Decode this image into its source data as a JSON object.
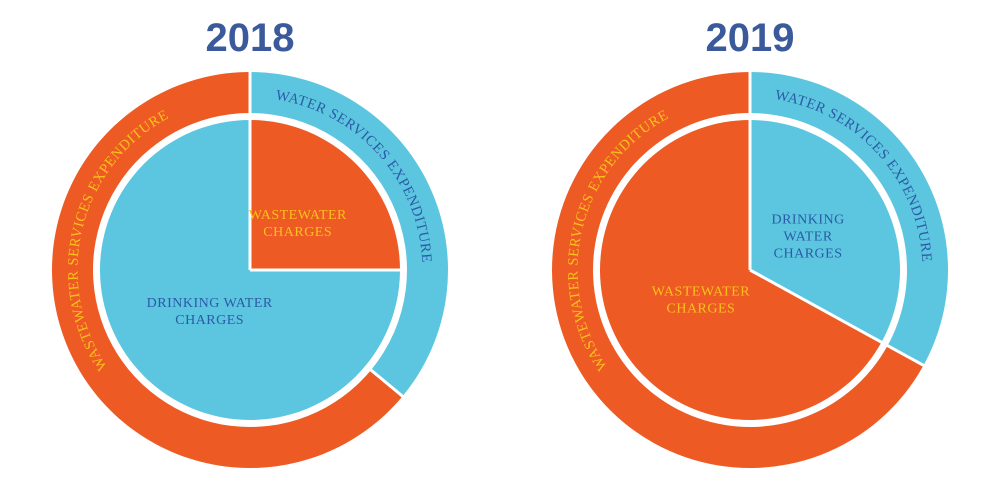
{
  "colors": {
    "water": "#5cc5df",
    "wastewater": "#ee5a24",
    "water_text": "#2a5ca6",
    "wastewater_text": "#f8c11c",
    "title": "#3a5a9c"
  },
  "chart_data": [
    {
      "type": "pie",
      "title": "2018",
      "inner": {
        "slices": [
          {
            "label_lines": [
              "WASTEWATER",
              "CHARGES"
            ],
            "value": 25,
            "group": "wastewater"
          },
          {
            "label_lines": [
              "DRINKING WATER",
              "CHARGES"
            ],
            "value": 75,
            "group": "water"
          }
        ]
      },
      "outer": {
        "slices": [
          {
            "label": "WATER SERVICES EXPENDITURE",
            "value": 36,
            "group": "water"
          },
          {
            "label": "WASTEWATER SERVICES EXPENDITURE",
            "value": 64,
            "group": "wastewater"
          }
        ]
      }
    },
    {
      "type": "pie",
      "title": "2019",
      "inner": {
        "slices": [
          {
            "label_lines": [
              "DRINKING",
              "WATER",
              "CHARGES"
            ],
            "value": 33,
            "group": "water"
          },
          {
            "label_lines": [
              "WASTEWATER",
              "CHARGES"
            ],
            "value": 67,
            "group": "wastewater"
          }
        ]
      },
      "outer": {
        "slices": [
          {
            "label": "WATER SERVICES EXPENDITURE",
            "value": 33,
            "group": "water"
          },
          {
            "label": "WASTEWATER SERVICES EXPENDITURE",
            "value": 67,
            "group": "wastewater"
          }
        ]
      }
    }
  ]
}
